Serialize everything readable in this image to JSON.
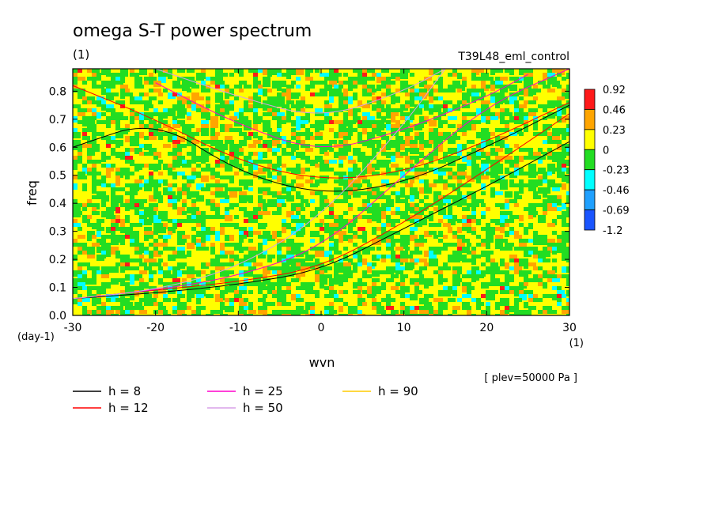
{
  "header": {
    "title": "omega S-T power spectrum",
    "units": "(1)",
    "run": "T39L48_eml_control"
  },
  "chart_data": {
    "type": "heatmap",
    "xlabel": "wvn",
    "ylabel": "freq",
    "x_unit": "(1)",
    "y_unit": "(day-1)",
    "xlim": [
      -30,
      30
    ],
    "ylim": [
      0,
      0.88
    ],
    "xticks": [
      "-30",
      "-20",
      "-10",
      "0",
      "10",
      "20",
      "30"
    ],
    "yticks": [
      "0.0",
      "0.1",
      "0.2",
      "0.3",
      "0.4",
      "0.5",
      "0.6",
      "0.7",
      "0.8"
    ],
    "annotation": "[ plev=50000 Pa ]",
    "colorbar": {
      "levels": [
        "0.92",
        "0.46",
        "0.23",
        "0",
        "-0.23",
        "-0.46",
        "-0.69",
        "-1.2"
      ],
      "colors": [
        "#ff1a1a",
        "#ffa500",
        "#ffff00",
        "#22dd22",
        "#00ffff",
        "#1fa0ff",
        "#1a55ff"
      ]
    },
    "field_mix": [
      {
        "color": "#ffff00",
        "weight": 0.48
      },
      {
        "color": "#22dd22",
        "weight": 0.38
      },
      {
        "color": "#ffa500",
        "weight": 0.09
      },
      {
        "color": "#00ffff",
        "weight": 0.04
      },
      {
        "color": "#ff1a1a",
        "weight": 0.01
      }
    ],
    "legend": [
      {
        "label": "h =  8",
        "color": "#000000"
      },
      {
        "label": "h = 12",
        "color": "#ff0000"
      },
      {
        "label": "h = 25",
        "color": "#ff00cc"
      },
      {
        "label": "h = 50",
        "color": "#d8a0e8"
      },
      {
        "label": "h = 90",
        "color": "#ffcc00"
      }
    ],
    "dispersion_curves": [
      {
        "color": "#000000",
        "points": [
          [
            -30,
            0.6
          ],
          [
            -20,
            0.7
          ],
          [
            -10,
            0.51
          ],
          [
            0,
            0.43
          ],
          [
            10,
            0.47
          ],
          [
            20,
            0.6
          ],
          [
            30,
            0.75
          ]
        ]
      },
      {
        "color": "#000000",
        "points": [
          [
            -30,
            0.06
          ],
          [
            -20,
            0.08
          ],
          [
            -10,
            0.11
          ],
          [
            0,
            0.16
          ],
          [
            10,
            0.31
          ],
          [
            20,
            0.46
          ],
          [
            30,
            0.62
          ]
        ]
      },
      {
        "color": "#ff0000",
        "points": [
          [
            -30,
            0.82
          ],
          [
            -20,
            0.7
          ],
          [
            -10,
            0.55
          ],
          [
            0,
            0.48
          ],
          [
            10,
            0.51
          ],
          [
            20,
            0.62
          ],
          [
            30,
            0.76
          ]
        ]
      },
      {
        "color": "#ff0000",
        "points": [
          [
            -30,
            0.06
          ],
          [
            -20,
            0.09
          ],
          [
            -10,
            0.12
          ],
          [
            0,
            0.17
          ],
          [
            10,
            0.33
          ],
          [
            20,
            0.52
          ],
          [
            30,
            0.72
          ]
        ]
      },
      {
        "color": "#ff00cc",
        "points": [
          [
            -20,
            0.83
          ],
          [
            -10,
            0.68
          ],
          [
            0,
            0.58
          ],
          [
            10,
            0.66
          ],
          [
            20,
            0.78
          ],
          [
            25,
            0.86
          ]
        ]
      },
      {
        "color": "#ff00cc",
        "points": [
          [
            -30,
            0.06
          ],
          [
            -20,
            0.09
          ],
          [
            -10,
            0.14
          ],
          [
            0,
            0.24
          ],
          [
            10,
            0.5
          ],
          [
            20,
            0.75
          ],
          [
            30,
            0.88
          ]
        ]
      },
      {
        "color": "#d8a0e8",
        "points": [
          [
            -20,
            0.88
          ],
          [
            -10,
            0.78
          ],
          [
            0,
            0.7
          ],
          [
            10,
            0.8
          ],
          [
            15,
            0.88
          ]
        ]
      },
      {
        "color": "#d8a0e8",
        "points": [
          [
            -30,
            0.06
          ],
          [
            -20,
            0.09
          ],
          [
            -10,
            0.17
          ],
          [
            0,
            0.35
          ],
          [
            10,
            0.68
          ],
          [
            15,
            0.88
          ]
        ]
      }
    ]
  }
}
